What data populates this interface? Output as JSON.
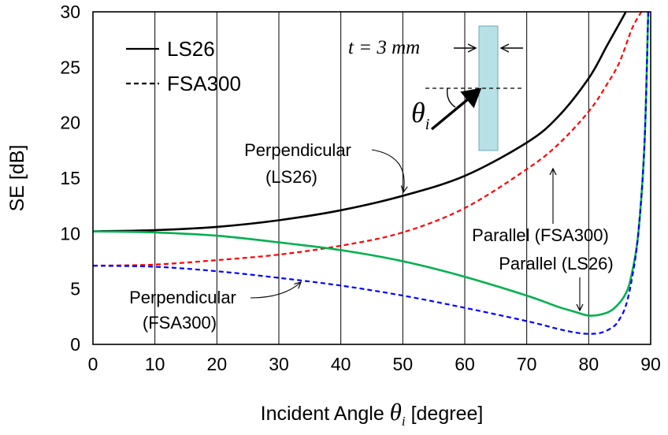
{
  "chart_data": {
    "type": "line",
    "xlabel_prefix": "Incident Angle ",
    "xlabel_symbol": "θ",
    "xlabel_subscript": "i",
    "xlabel_suffix": " [degree]",
    "ylabel": "SE [dB]",
    "xlim": [
      0,
      90
    ],
    "ylim": [
      0,
      30
    ],
    "x_ticks": [
      "0",
      "10",
      "20",
      "30",
      "40",
      "50",
      "60",
      "70",
      "80",
      "90"
    ],
    "y_ticks": [
      "0",
      "5",
      "10",
      "15",
      "20",
      "25",
      "30"
    ],
    "grid": "vertical-only",
    "legend": {
      "placement": "top-left",
      "items": [
        {
          "label": "LS26",
          "style": "solid"
        },
        {
          "label": "FSA300",
          "style": "dashed"
        }
      ]
    },
    "series": [
      {
        "color": "#000000",
        "dash": false,
        "x": [
          0,
          10,
          20,
          30,
          40,
          50,
          60,
          70,
          75,
          80,
          83,
          85,
          86
        ],
        "y": [
          10.2,
          10.3,
          10.6,
          11.2,
          12.1,
          13.4,
          15.2,
          18.2,
          20.5,
          24.0,
          27.0,
          29.0,
          30
        ]
      },
      {
        "color": "#ff0000",
        "dash": true,
        "x": [
          0,
          10,
          20,
          30,
          40,
          50,
          60,
          70,
          75,
          80,
          83,
          85,
          87,
          88.5
        ],
        "y": [
          7.1,
          7.2,
          7.6,
          8.1,
          8.9,
          10.1,
          12.3,
          15.8,
          18.0,
          21.0,
          23.5,
          25.5,
          28.5,
          30
        ]
      },
      {
        "color": "#00b050",
        "dash": false,
        "x": [
          0,
          10,
          20,
          30,
          40,
          50,
          60,
          70,
          75,
          78,
          80,
          82,
          84,
          86,
          87,
          88,
          89,
          89.6
        ],
        "y": [
          10.2,
          10.1,
          9.8,
          9.2,
          8.5,
          7.5,
          6.1,
          4.4,
          3.4,
          2.9,
          2.6,
          2.7,
          3.2,
          4.6,
          6.5,
          10.0,
          18.0,
          30
        ]
      },
      {
        "color": "#0000ff",
        "dash": true,
        "x": [
          0,
          10,
          20,
          30,
          40,
          50,
          60,
          70,
          75,
          78,
          80,
          82,
          84,
          85,
          86,
          87,
          88,
          89,
          89.6
        ],
        "y": [
          7.1,
          7.0,
          6.6,
          6.0,
          5.3,
          4.4,
          3.3,
          2.1,
          1.4,
          1.05,
          0.95,
          1.05,
          1.6,
          2.3,
          3.5,
          6.0,
          10.0,
          18.0,
          30
        ]
      }
    ],
    "annotations": {
      "perp_ls26": [
        "Perpendicular",
        "(LS26)"
      ],
      "par_fsa300": "Parallel (FSA300)",
      "par_ls26": "Parallel (LS26)",
      "perp_fsa300": [
        "Perpendicular",
        "(FSA300)"
      ],
      "thickness_label": "t = 3 mm",
      "theta_symbol": "θ",
      "theta_subscript": "i"
    }
  }
}
